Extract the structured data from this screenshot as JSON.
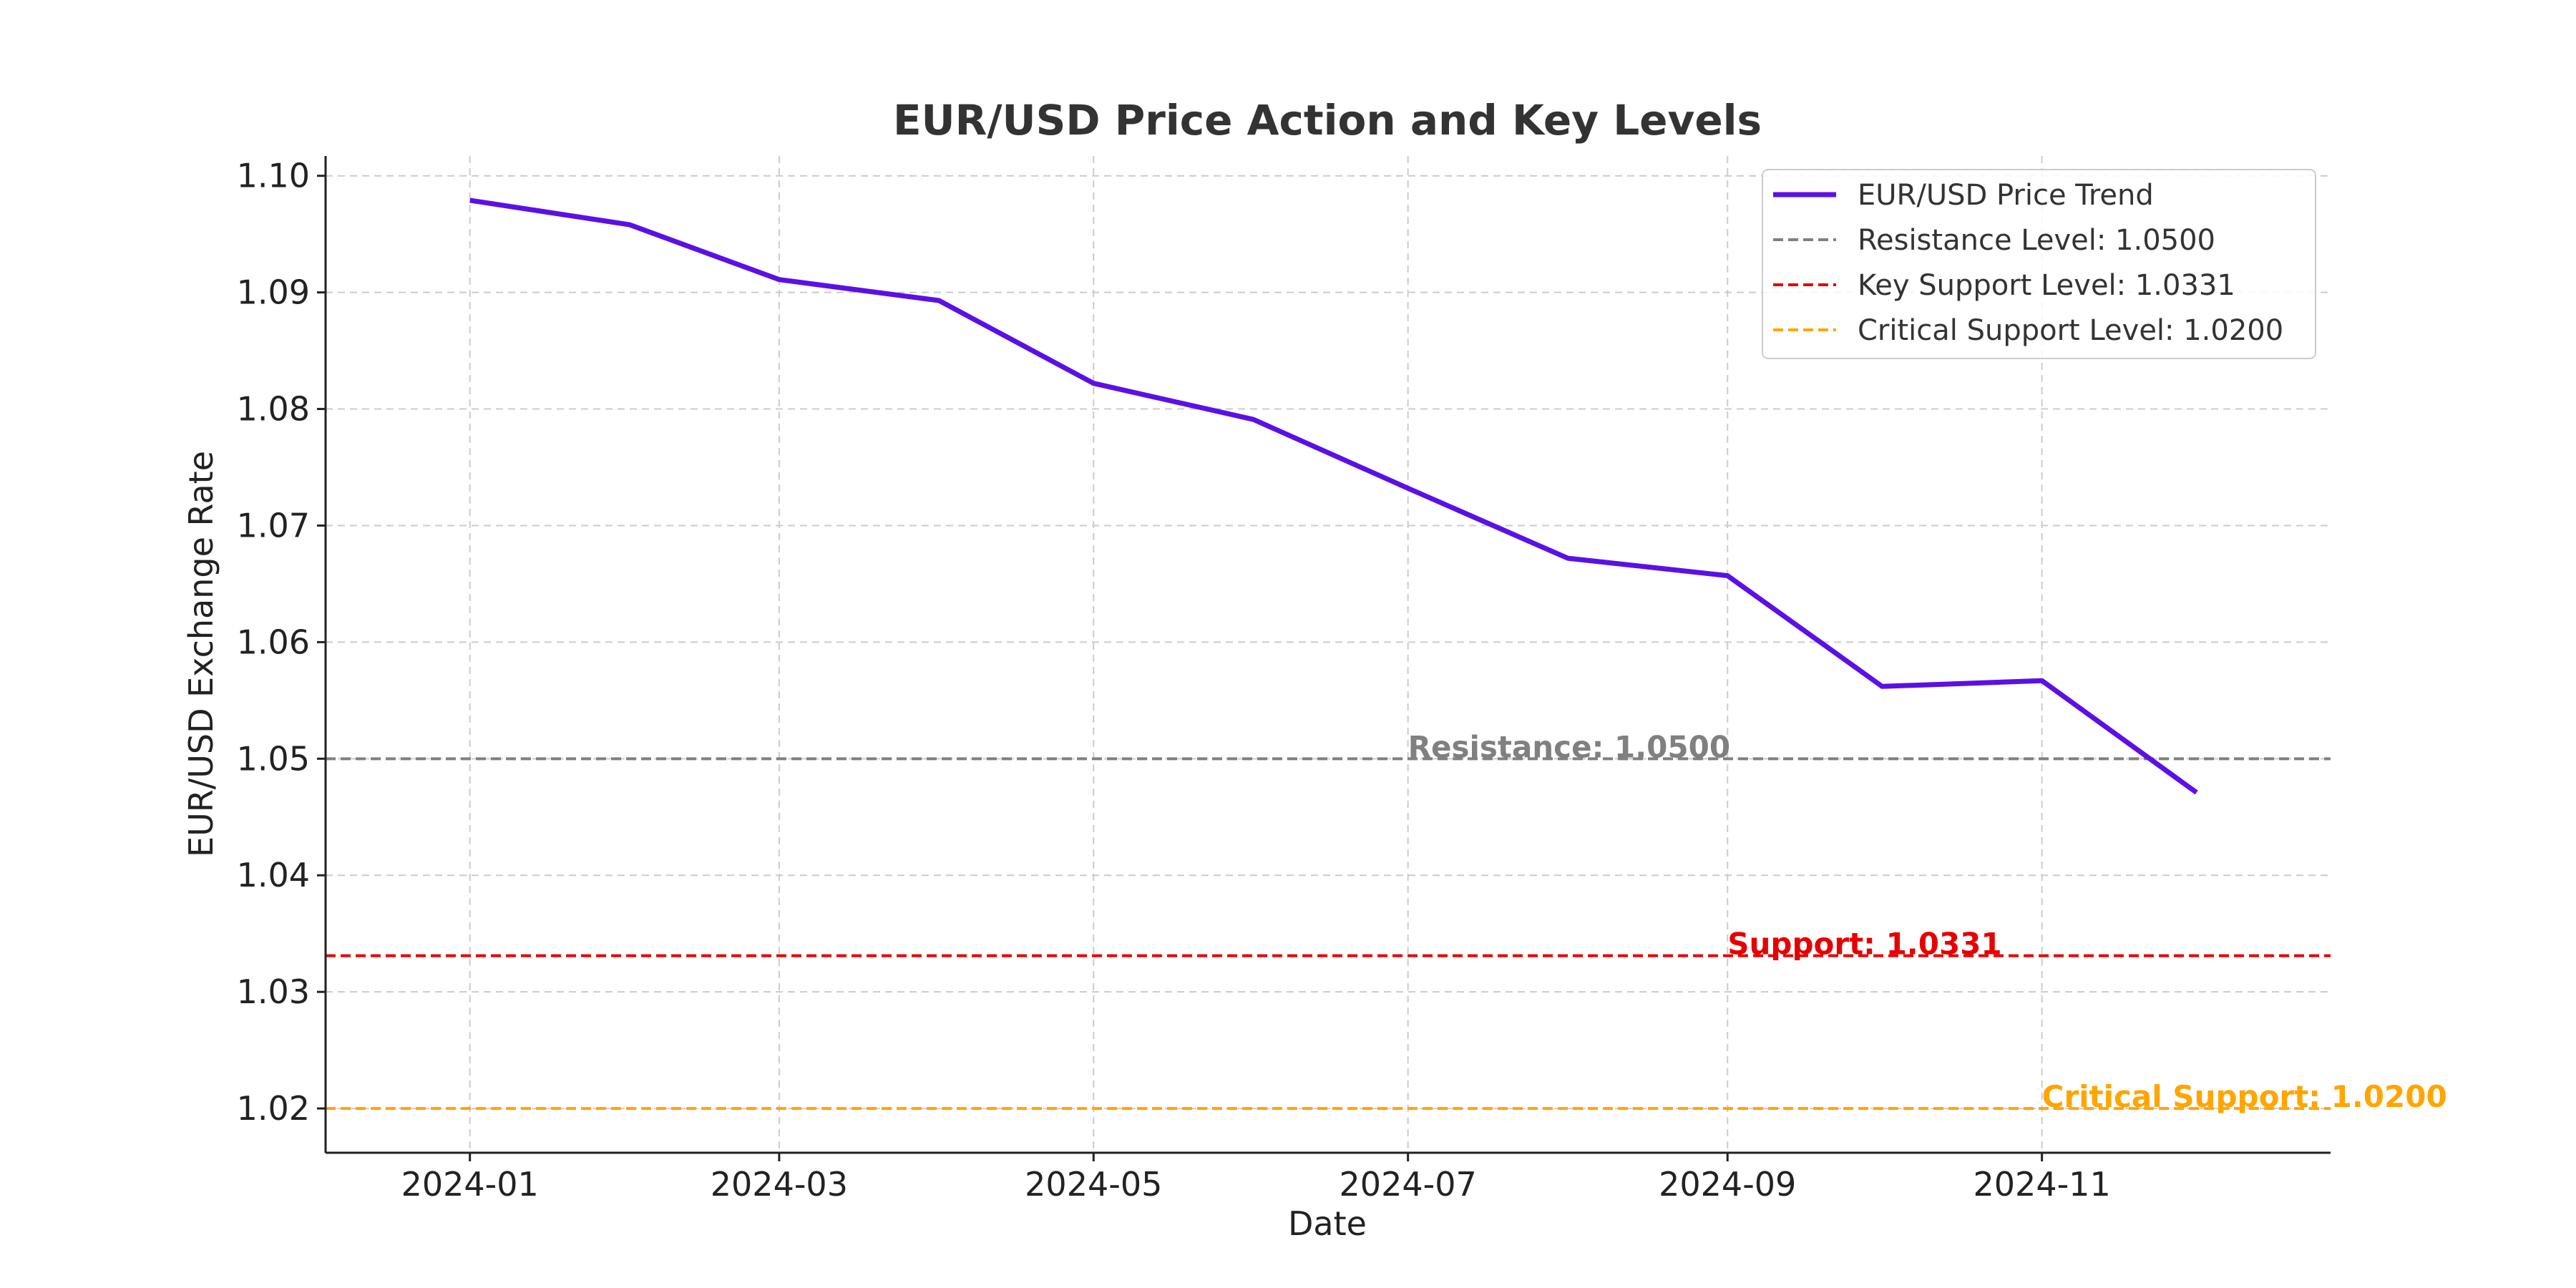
{
  "chart_data": {
    "type": "line",
    "title": "EUR/USD Price Action and Key Levels",
    "xlabel": "Date",
    "ylabel": "EUR/USD Exchange Rate",
    "x_ticks": [
      "2024-01",
      "2024-03",
      "2024-05",
      "2024-07",
      "2024-09",
      "2024-11"
    ],
    "y_ticks": [
      "1.02",
      "1.03",
      "1.04",
      "1.05",
      "1.06",
      "1.07",
      "1.08",
      "1.09",
      "1.10"
    ],
    "xlim": [
      "2023-12-04",
      "2024-12-27"
    ],
    "ylim": [
      1.0162,
      1.1017
    ],
    "grid": true,
    "legend_position": "top-right",
    "series": [
      {
        "name": "EUR/USD Price Trend",
        "color": "#5b10e6",
        "x": [
          "2024-01-01",
          "2024-02-01",
          "2024-03-01",
          "2024-04-01",
          "2024-05-01",
          "2024-06-01",
          "2024-07-01",
          "2024-08-01",
          "2024-09-01",
          "2024-10-01",
          "2024-11-01",
          "2024-12-01"
        ],
        "values": [
          1.0979,
          1.0958,
          1.0911,
          1.0893,
          1.0822,
          1.0791,
          1.0732,
          1.0672,
          1.0657,
          1.0562,
          1.0567,
          1.0471
        ]
      }
    ],
    "levels": [
      {
        "name": "Resistance Level: 1.0500",
        "value": 1.05,
        "color": "#808080",
        "label": "Resistance: 1.0500",
        "label_x": "2024-07-01"
      },
      {
        "name": "Key Support Level: 1.0331",
        "value": 1.0331,
        "color": "#e60000",
        "label": "Support: 1.0331",
        "label_x": "2024-09-01"
      },
      {
        "name": "Critical Support Level: 1.0200",
        "value": 1.02,
        "color": "#ffa500",
        "label": "Critical Support: 1.0200",
        "label_x": "2024-11-01"
      }
    ]
  }
}
